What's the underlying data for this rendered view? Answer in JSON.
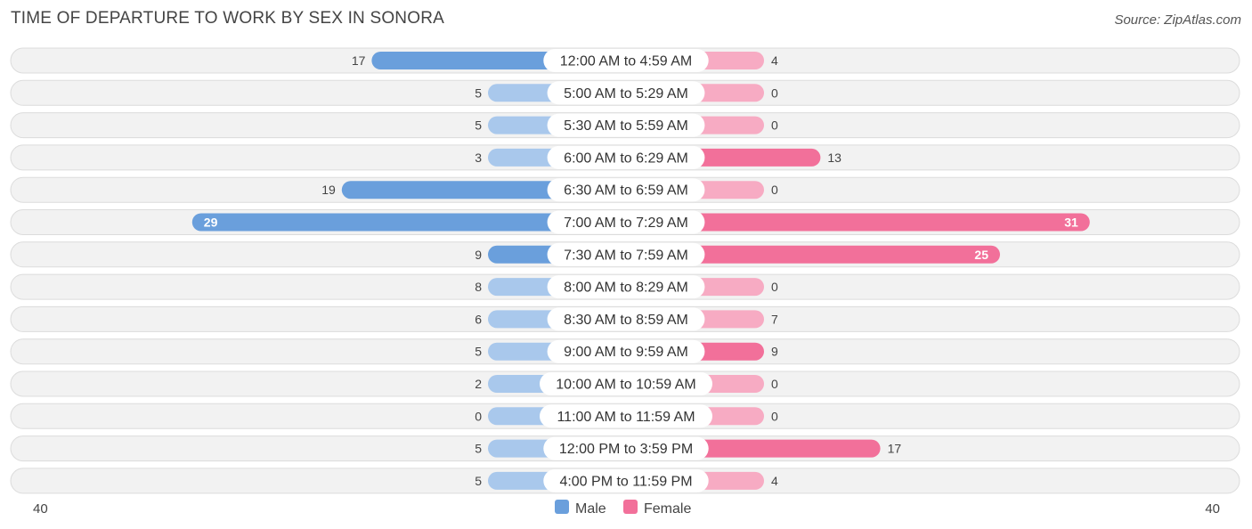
{
  "title": "TIME OF DEPARTURE TO WORK BY SEX IN SONORA",
  "source": "Source: ZipAtlas.com",
  "colors": {
    "male_strong": "#6a9fdc",
    "male_light": "#a9c8ec",
    "female_strong": "#f2709a",
    "female_light": "#f7abc3"
  },
  "chart_data": {
    "type": "bar",
    "orientation": "horizontal-diverging",
    "categories": [
      "12:00 AM to 4:59 AM",
      "5:00 AM to 5:29 AM",
      "5:30 AM to 5:59 AM",
      "6:00 AM to 6:29 AM",
      "6:30 AM to 6:59 AM",
      "7:00 AM to 7:29 AM",
      "7:30 AM to 7:59 AM",
      "8:00 AM to 8:29 AM",
      "8:30 AM to 8:59 AM",
      "9:00 AM to 9:59 AM",
      "10:00 AM to 10:59 AM",
      "11:00 AM to 11:59 AM",
      "12:00 PM to 3:59 PM",
      "4:00 PM to 11:59 PM"
    ],
    "series": [
      {
        "name": "Male",
        "values": [
          17,
          5,
          5,
          3,
          19,
          29,
          9,
          8,
          6,
          5,
          2,
          0,
          5,
          5
        ]
      },
      {
        "name": "Female",
        "values": [
          4,
          0,
          0,
          13,
          0,
          31,
          25,
          0,
          7,
          9,
          0,
          0,
          17,
          4
        ]
      }
    ],
    "axis": {
      "left_label": "40",
      "right_label": "40",
      "max": 40
    },
    "legend": {
      "position": "bottom-center",
      "items": [
        "Male",
        "Female"
      ]
    }
  }
}
